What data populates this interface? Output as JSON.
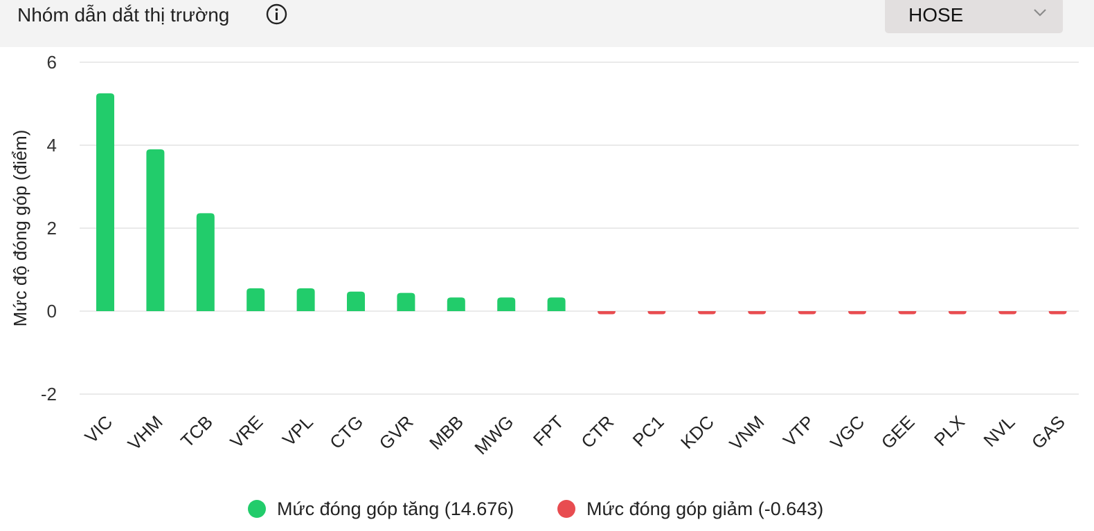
{
  "header": {
    "title": "Nhóm dẫn dắt thị trường",
    "info_icon": "info-circle-icon",
    "exchange_select": {
      "value": "HOSE",
      "icon": "chevron-down-icon"
    }
  },
  "colors": {
    "positive": "#22cc6b",
    "negative": "#e84c50",
    "grid": "#e4e4e4",
    "header_bg": "#f3f3f3",
    "select_bg": "#e2dfdf"
  },
  "chart_data": {
    "type": "bar",
    "ylabel": "Mức độ đóng góp (điểm)",
    "ylim": [
      -2.3,
      6.2
    ],
    "yticks": [
      -2,
      0,
      2,
      4,
      6
    ],
    "grid": true,
    "categories": [
      "VIC",
      "VHM",
      "TCB",
      "VRE",
      "VPL",
      "CTG",
      "GVR",
      "MBB",
      "MWG",
      "FPT",
      "CTR",
      "PC1",
      "KDC",
      "VNM",
      "VTP",
      "VGC",
      "GEE",
      "PLX",
      "NVL",
      "GAS"
    ],
    "values": [
      5.25,
      3.9,
      2.36,
      0.55,
      0.55,
      0.47,
      0.44,
      0.33,
      0.33,
      0.33,
      -0.03,
      -0.03,
      -0.03,
      -0.05,
      -0.05,
      -0.05,
      -0.05,
      -0.07,
      -0.07,
      -0.07
    ],
    "legend_position": "bottom",
    "legend": [
      {
        "label": "Mức đóng góp tăng (14.676)",
        "color": "#22cc6b"
      },
      {
        "label": "Mức đóng góp giảm (-0.643)",
        "color": "#e84c50"
      }
    ]
  }
}
